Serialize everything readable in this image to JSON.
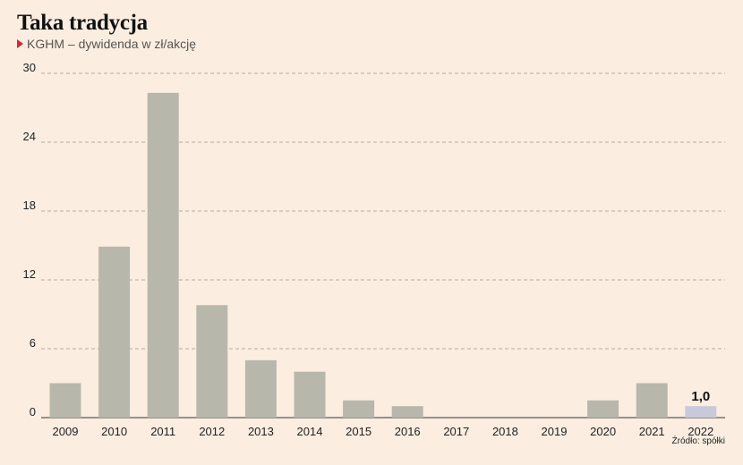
{
  "header": {
    "title": "Taka tradycja",
    "subtitle": "KGHM – dywidenda w zł/akcję"
  },
  "footer": {
    "source": "Źródło: spółki"
  },
  "colors": {
    "bar": "#b8b7ac",
    "highlight": "#c8cad9",
    "accent": "#d8262a",
    "background": "#fbeee1"
  },
  "chart_data": {
    "type": "bar",
    "categories": [
      "2009",
      "2010",
      "2011",
      "2012",
      "2013",
      "2014",
      "2015",
      "2016",
      "2017",
      "2018",
      "2019",
      "2020",
      "2021",
      "2022"
    ],
    "values": [
      3.0,
      14.9,
      28.3,
      9.8,
      5.0,
      4.0,
      1.5,
      1.0,
      0,
      0,
      0,
      1.5,
      3.0,
      1.0
    ],
    "yticks": [
      "0",
      "6",
      "12",
      "18",
      "24",
      "30"
    ],
    "ylim": [
      0,
      30
    ],
    "grid": true,
    "highlight_index": 13,
    "annotation": {
      "index": 13,
      "text": "1,0"
    }
  }
}
